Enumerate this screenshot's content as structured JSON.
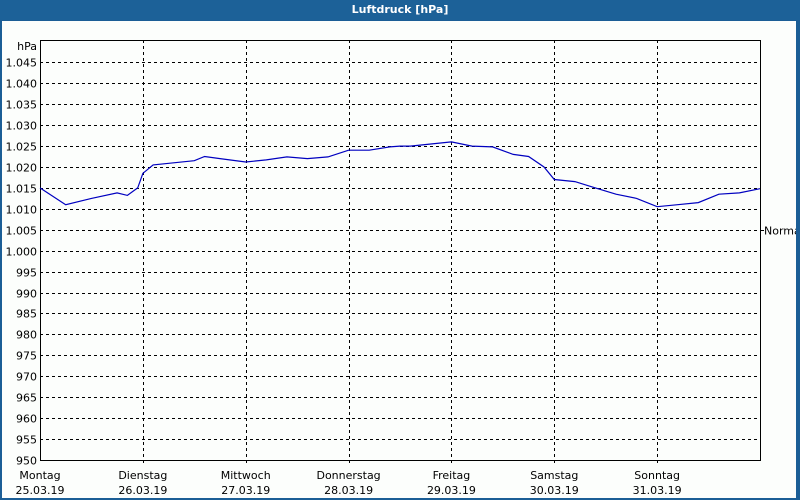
{
  "window": {
    "title": "Luftdruck [hPa]"
  },
  "chart_data": {
    "type": "line",
    "title": "Luftdruck [hPa]",
    "ylabel": "hPa",
    "ylim": [
      950,
      1048
    ],
    "yticks": [
      "1.045",
      "1.040",
      "1.035",
      "1.030",
      "1.025",
      "1.020",
      "1.015",
      "1.010",
      "1.005",
      "1.000",
      "995",
      "990",
      "985",
      "980",
      "975",
      "970",
      "965",
      "960",
      "955",
      "950"
    ],
    "xticks": [
      {
        "day": "Montag",
        "date": "25.03.19"
      },
      {
        "day": "Dienstag",
        "date": "26.03.19"
      },
      {
        "day": "Mittwoch",
        "date": "27.03.19"
      },
      {
        "day": "Donnerstag",
        "date": "28.03.19"
      },
      {
        "day": "Freitag",
        "date": "29.03.19"
      },
      {
        "day": "Samstag",
        "date": "30.03.19"
      },
      {
        "day": "Sonntag",
        "date": "31.03.19"
      }
    ],
    "reference_line": {
      "label": "Normal",
      "value": 1005
    },
    "grid": true,
    "series": [
      {
        "name": "Luftdruck",
        "color": "#0000c0",
        "x_days": [
          0,
          0.25,
          0.5,
          0.75,
          0.85,
          0.95,
          1.0,
          1.1,
          1.3,
          1.5,
          1.6,
          1.75,
          2.0,
          2.2,
          2.4,
          2.6,
          2.8,
          3.0,
          3.2,
          3.4,
          3.5,
          3.6,
          3.8,
          4.0,
          4.2,
          4.4,
          4.6,
          4.75,
          4.9,
          5.0,
          5.2,
          5.4,
          5.6,
          5.8,
          6.0,
          6.2,
          6.4,
          6.6,
          6.8,
          7.0
        ],
        "values": [
          1015,
          1011,
          1012.5,
          1013.8,
          1013.2,
          1015,
          1018.5,
          1020.5,
          1021,
          1021.5,
          1022.5,
          1022,
          1021.2,
          1021.7,
          1022.4,
          1022,
          1022.4,
          1024,
          1024,
          1024.8,
          1025,
          1025,
          1025.5,
          1026,
          1025,
          1024.8,
          1023,
          1022.5,
          1020,
          1017,
          1016.5,
          1015,
          1013.5,
          1012.5,
          1010.5,
          1011,
          1011.5,
          1013.5,
          1013.8,
          1014.8
        ]
      }
    ]
  }
}
